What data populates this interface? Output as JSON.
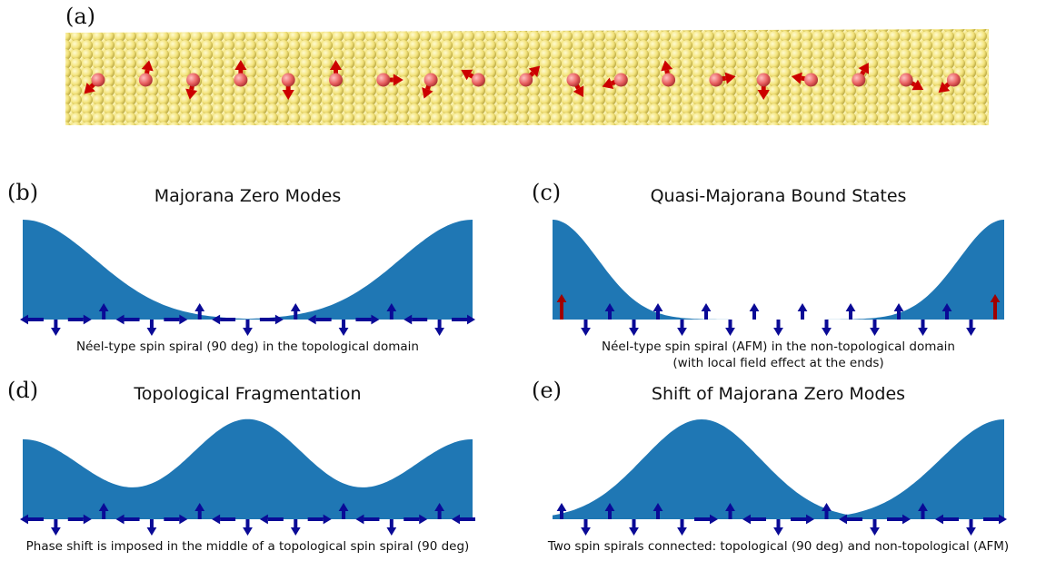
{
  "panel_a": {
    "label": "(a)"
  },
  "panels": [
    {
      "label": "(b)",
      "title": "Majorana Zero Modes",
      "caption": [
        "Néel-type spin spiral (90 deg) in the topological domain"
      ]
    },
    {
      "label": "(c)",
      "title": "Quasi-Majorana Bound States",
      "caption": [
        "Néel-type spin spiral (AFM) in the non-topological domain",
        "(with local field effect at the ends)"
      ]
    },
    {
      "label": "(d)",
      "title": "Topological Fragmentation",
      "caption": [
        "Phase shift is imposed in the middle of a topological spin spiral (90 deg)"
      ]
    },
    {
      "label": "(e)",
      "title": "Shift of Majorana Zero Modes",
      "caption": [
        "Two spin spirals connected: topological (90 deg) and non-topological (AFM)"
      ]
    }
  ]
}
